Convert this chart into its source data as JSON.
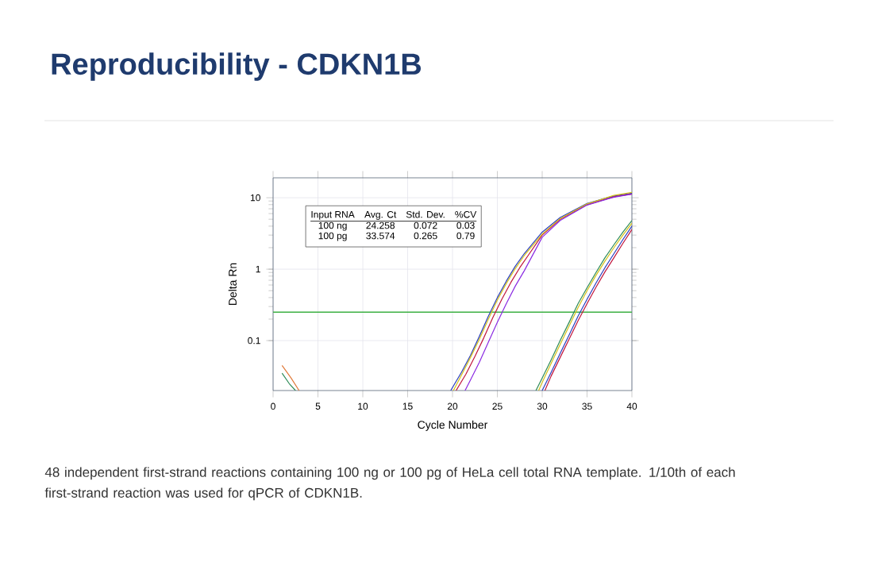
{
  "chart_data": {
    "type": "line",
    "title": "Reproducibility - CDKN1B",
    "xlabel": "Cycle Number",
    "ylabel": "Delta Rn",
    "xlim": [
      0,
      40
    ],
    "xticks": [
      0,
      5,
      10,
      15,
      20,
      25,
      30,
      35,
      40
    ],
    "ylim": [
      0.02,
      19
    ],
    "yticks": [
      0.1,
      1,
      10
    ],
    "log": true,
    "grid": true,
    "marker": "none",
    "line_style": "solid",
    "ref_lines": [
      {
        "axis": "y",
        "value": 0.25,
        "color": "#3cb043"
      }
    ],
    "annotations": [
      "Input RNA",
      "Avg. Ct",
      "Std. Dev.",
      "%CV",
      "100 ng",
      "24.258",
      "0.072",
      "0.03",
      "100 pg",
      "33.574",
      "0.265",
      "0.79",
      "48 independent first-strand reactions containing 100 ng or 100 pg of HeLa cell total RNA template. 1/10th of each first-strand reaction was used for qPCR of CDKN1B."
    ],
    "series": [
      {
        "color": "#2a3fbf",
        "x": [
          19.8,
          21,
          22,
          23,
          24,
          25,
          26,
          27,
          28,
          30,
          32,
          35,
          38,
          40
        ],
        "values": [
          0.02,
          0.036,
          0.062,
          0.115,
          0.22,
          0.4,
          0.68,
          1.1,
          1.65,
          3.3,
          5.3,
          8.3,
          10.6,
          11.6
        ]
      },
      {
        "color": "#c0143c",
        "x": [
          20.4,
          21.5,
          22.5,
          23.5,
          24.5,
          25.5,
          26.5,
          27.5,
          28.5,
          30,
          32,
          35,
          38,
          40
        ],
        "values": [
          0.02,
          0.034,
          0.06,
          0.11,
          0.21,
          0.38,
          0.65,
          1.05,
          1.6,
          3.0,
          5.0,
          8.0,
          10.3,
          11.3
        ]
      },
      {
        "color": "#d4c21a",
        "x": [
          20.1,
          21,
          22,
          23,
          24,
          25,
          26,
          27,
          28,
          30,
          32,
          35,
          38,
          40
        ],
        "values": [
          0.02,
          0.033,
          0.058,
          0.105,
          0.2,
          0.37,
          0.63,
          1.02,
          1.55,
          3.1,
          5.1,
          8.2,
          10.8,
          11.9
        ]
      },
      {
        "color": "#8a2be2",
        "x": [
          21.4,
          22,
          23,
          24,
          25,
          26,
          27,
          28,
          30,
          32,
          35,
          38,
          40
        ],
        "values": [
          0.02,
          0.028,
          0.05,
          0.095,
          0.18,
          0.33,
          0.58,
          0.95,
          2.8,
          4.8,
          7.9,
          10.2,
          11.2
        ]
      },
      {
        "color": "#2e8b57",
        "x": [
          29.3,
          30,
          31,
          32,
          33,
          34,
          35,
          36,
          37,
          38,
          39,
          40
        ],
        "values": [
          0.02,
          0.03,
          0.054,
          0.1,
          0.18,
          0.33,
          0.55,
          0.9,
          1.45,
          2.2,
          3.3,
          4.8
        ]
      },
      {
        "color": "#d4c21a",
        "x": [
          29.6,
          30,
          31,
          32,
          33,
          34,
          35,
          36,
          37,
          38,
          39,
          40
        ],
        "values": [
          0.02,
          0.026,
          0.048,
          0.088,
          0.16,
          0.29,
          0.5,
          0.82,
          1.3,
          2.0,
          3.0,
          4.4
        ]
      },
      {
        "color": "#c0143c",
        "x": [
          30.3,
          31,
          32,
          33,
          34,
          35,
          36,
          37,
          38,
          39,
          40
        ],
        "values": [
          0.02,
          0.032,
          0.058,
          0.105,
          0.19,
          0.33,
          0.56,
          0.92,
          1.45,
          2.3,
          3.6
        ]
      },
      {
        "color": "#2a3fbf",
        "x": [
          30.0,
          31,
          32,
          33,
          34,
          35,
          36,
          37,
          38,
          39,
          40
        ],
        "values": [
          0.02,
          0.036,
          0.066,
          0.12,
          0.22,
          0.38,
          0.64,
          1.05,
          1.65,
          2.6,
          4.0
        ]
      },
      {
        "color": "#e07a3a",
        "x": [
          1,
          2,
          2.9
        ],
        "values": [
          0.045,
          0.03,
          0.02
        ]
      },
      {
        "color": "#2e8b57",
        "x": [
          1,
          1.8,
          2.5
        ],
        "values": [
          0.035,
          0.025,
          0.02
        ]
      }
    ]
  }
}
